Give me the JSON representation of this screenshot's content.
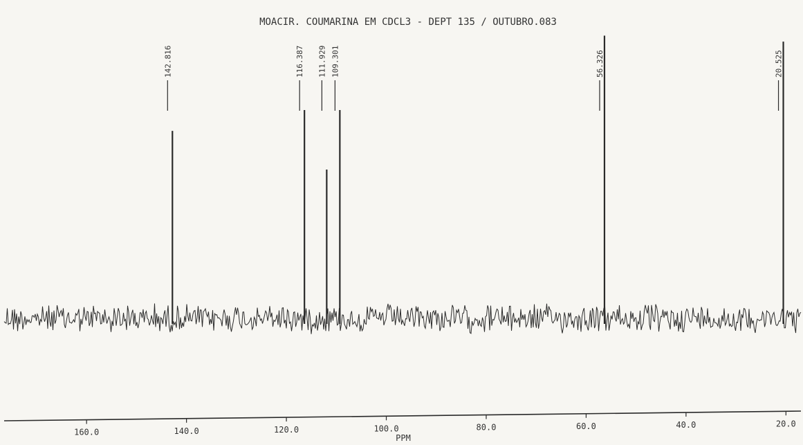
{
  "chart_data": {
    "type": "line",
    "title": "MOACIR. COUMARINA EM CDCL3 - DEPT 135 / OUTUBRO.083",
    "xlabel": "PPM",
    "ylabel": "",
    "xlim": [
      176.5,
      17.0
    ],
    "x_reversed": true,
    "grid": false,
    "x_ticks": [
      {
        "value": 160,
        "label": "160.0"
      },
      {
        "value": 140,
        "label": "140.0"
      },
      {
        "value": 120,
        "label": "120.0"
      },
      {
        "value": 100,
        "label": "100.0"
      },
      {
        "value": 80,
        "label": "80.0"
      },
      {
        "value": 60,
        "label": "60.0"
      },
      {
        "value": 40,
        "label": "40.0"
      },
      {
        "value": 20,
        "label": "20.0"
      }
    ],
    "peaks": [
      {
        "ppm": 142.816,
        "label": "142.816",
        "intensity": 0.63
      },
      {
        "ppm": 116.387,
        "label": "116.387",
        "intensity": 0.7
      },
      {
        "ppm": 111.929,
        "label": "111.929",
        "intensity": 0.5
      },
      {
        "ppm": 109.301,
        "label": "109.301",
        "intensity": 0.7
      },
      {
        "ppm": 56.326,
        "label": "56.326",
        "intensity": 0.95
      },
      {
        "ppm": 20.525,
        "label": "20.525",
        "intensity": 0.93
      }
    ],
    "baseline_noise": 0.05,
    "colors": {
      "trace": "#2a2a2a",
      "paper": "#f7f6f2",
      "text": "#333333"
    }
  }
}
